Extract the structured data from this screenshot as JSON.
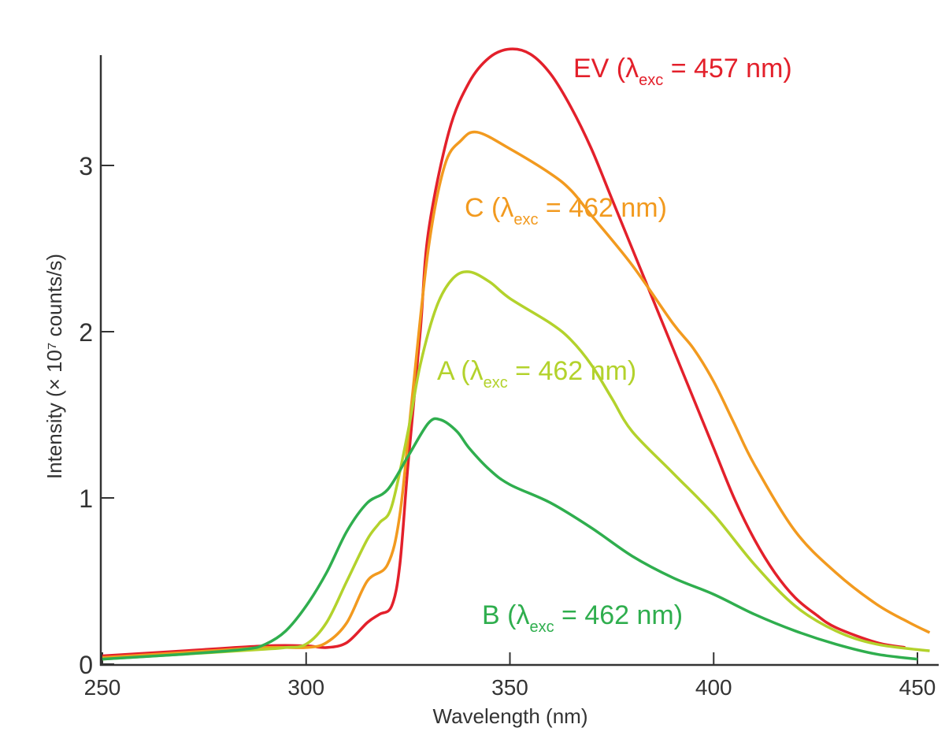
{
  "chart_data": {
    "type": "line",
    "xlabel": "Wavelength (nm)",
    "ylabel": "Intensity (× 10⁷ counts/s)",
    "xlim": [
      250,
      455
    ],
    "ylim": [
      0,
      3.7
    ],
    "xticks": [
      250,
      300,
      350,
      400,
      450
    ],
    "yticks": [
      0,
      1,
      2,
      3
    ],
    "grid": false,
    "series": [
      {
        "name": "EV",
        "label_prefix": "EV (λ",
        "label_sub": "exc",
        "label_suffix": " = 457 nm)",
        "color": "#e3202b",
        "x": [
          250,
          270,
          290,
          300,
          305,
          310,
          315,
          318,
          321,
          323,
          325,
          328,
          330,
          335,
          340,
          345,
          350,
          355,
          360,
          365,
          370,
          375,
          380,
          385,
          390,
          395,
          400,
          405,
          410,
          415,
          420,
          425,
          430,
          440,
          447
        ],
        "y": [
          0.05,
          0.08,
          0.11,
          0.11,
          0.1,
          0.13,
          0.25,
          0.3,
          0.35,
          0.6,
          1.2,
          2.0,
          2.6,
          3.2,
          3.5,
          3.65,
          3.7,
          3.67,
          3.55,
          3.35,
          3.1,
          2.8,
          2.5,
          2.2,
          1.9,
          1.6,
          1.3,
          1.0,
          0.75,
          0.55,
          0.4,
          0.3,
          0.22,
          0.13,
          0.1
        ]
      },
      {
        "name": "C",
        "label_prefix": "C (λ",
        "label_sub": "exc",
        "label_suffix": " = 462 nm)",
        "color": "#f29a1f",
        "x": [
          250,
          270,
          290,
          300,
          305,
          310,
          315,
          320,
          323,
          326,
          330,
          334,
          338,
          342,
          350,
          360,
          365,
          370,
          380,
          390,
          395,
          400,
          405,
          410,
          420,
          430,
          440,
          448,
          453
        ],
        "y": [
          0.04,
          0.07,
          0.1,
          0.1,
          0.13,
          0.25,
          0.5,
          0.6,
          0.9,
          1.6,
          2.5,
          3.0,
          3.15,
          3.2,
          3.1,
          2.95,
          2.85,
          2.7,
          2.4,
          2.05,
          1.9,
          1.7,
          1.45,
          1.2,
          0.8,
          0.55,
          0.36,
          0.25,
          0.19
        ]
      },
      {
        "name": "A",
        "label_prefix": "A (λ",
        "label_sub": "exc",
        "label_suffix": " = 462 nm)",
        "color": "#b3d22c",
        "x": [
          250,
          270,
          290,
          295,
          300,
          305,
          310,
          315,
          318,
          321,
          325,
          328,
          332,
          336,
          340,
          345,
          350,
          360,
          365,
          370,
          375,
          380,
          390,
          400,
          410,
          420,
          430,
          440,
          453
        ],
        "y": [
          0.03,
          0.06,
          0.09,
          0.1,
          0.12,
          0.25,
          0.5,
          0.75,
          0.85,
          0.95,
          1.4,
          1.8,
          2.15,
          2.32,
          2.36,
          2.3,
          2.2,
          2.05,
          1.95,
          1.8,
          1.6,
          1.4,
          1.15,
          0.9,
          0.6,
          0.35,
          0.2,
          0.12,
          0.08
        ]
      },
      {
        "name": "B",
        "label_prefix": "B (λ",
        "label_sub": "exc",
        "label_suffix": " = 462 nm)",
        "color": "#2fae4e",
        "x": [
          250,
          270,
          285,
          290,
          295,
          300,
          305,
          310,
          315,
          320,
          325,
          330,
          333,
          337,
          340,
          345,
          350,
          360,
          370,
          380,
          390,
          400,
          410,
          420,
          430,
          440,
          450
        ],
        "y": [
          0.03,
          0.06,
          0.09,
          0.12,
          0.2,
          0.35,
          0.55,
          0.8,
          0.97,
          1.05,
          1.25,
          1.45,
          1.47,
          1.4,
          1.3,
          1.17,
          1.08,
          0.97,
          0.82,
          0.65,
          0.52,
          0.42,
          0.3,
          0.2,
          0.12,
          0.06,
          0.03
        ]
      }
    ]
  }
}
